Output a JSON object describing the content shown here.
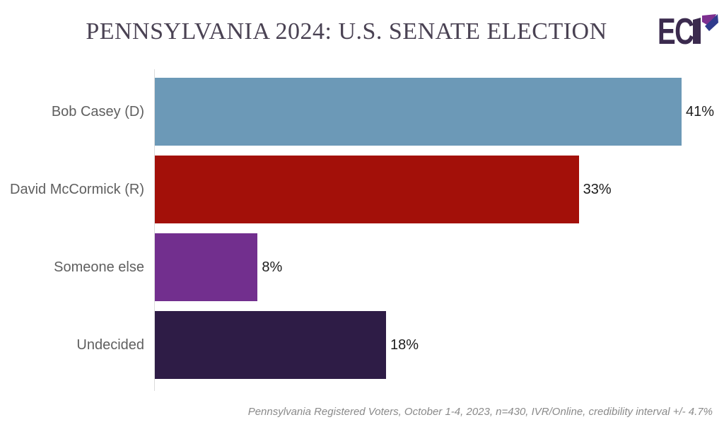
{
  "header": {
    "title": "PENNSYLVANIA 2024: U.S. SENATE ELECTION",
    "logo": {
      "text": "EC",
      "name": "ECP",
      "dark": "#3b2a4e",
      "purple": "#7d2f8f",
      "navy": "#2f3b8d"
    }
  },
  "chart_data": {
    "type": "bar",
    "orientation": "horizontal",
    "title": "PENNSYLVANIA 2024: U.S. SENATE ELECTION",
    "categories": [
      "Bob Casey (D)",
      "David McCormick (R)",
      "Someone else",
      "Undecided"
    ],
    "values": [
      41,
      33,
      8,
      18
    ],
    "value_labels": [
      "41%",
      "33%",
      "8%",
      "18%"
    ],
    "colors": [
      "#6c99b7",
      "#a31009",
      "#722f8e",
      "#2e1c46"
    ],
    "xlabel": "",
    "ylabel": "",
    "xlim": [
      0,
      44
    ],
    "grid": false,
    "legend": false,
    "value_label_position": "outside-end"
  },
  "footer": {
    "note": "Pennsylvania Registered Voters, October 1-4, 2023, n=430, IVR/Online, credibility interval +/- 4.7%"
  },
  "colors": {
    "title_text": "#4a4253",
    "category_label": "#5f5f5f",
    "value_label": "#1c1c1c",
    "footer_text": "#8a8a8a",
    "axis_line": "#dcdcdc",
    "background": "#ffffff"
  }
}
